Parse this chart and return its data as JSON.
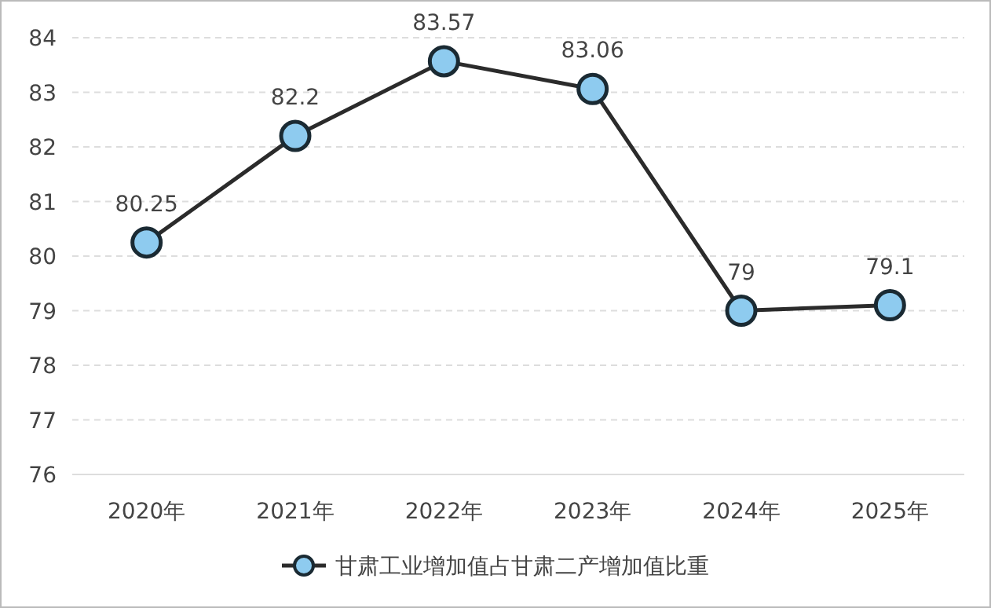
{
  "chart_data": {
    "type": "line",
    "categories": [
      "2020年",
      "2021年",
      "2022年",
      "2023年",
      "2024年",
      "2025年"
    ],
    "series": [
      {
        "name": "甘肃工业增加值占甘肃二产增加值比重",
        "color": "#8ecbef",
        "values": [
          80.25,
          82.2,
          83.57,
          83.06,
          79,
          79.1
        ]
      }
    ],
    "ylim": [
      76,
      84
    ],
    "yticks": [
      76,
      77,
      78,
      79,
      80,
      81,
      82,
      83,
      84
    ],
    "grid": "y",
    "legend": "bottom",
    "marker": "circle",
    "line_style": "solid",
    "data_labels": true
  }
}
